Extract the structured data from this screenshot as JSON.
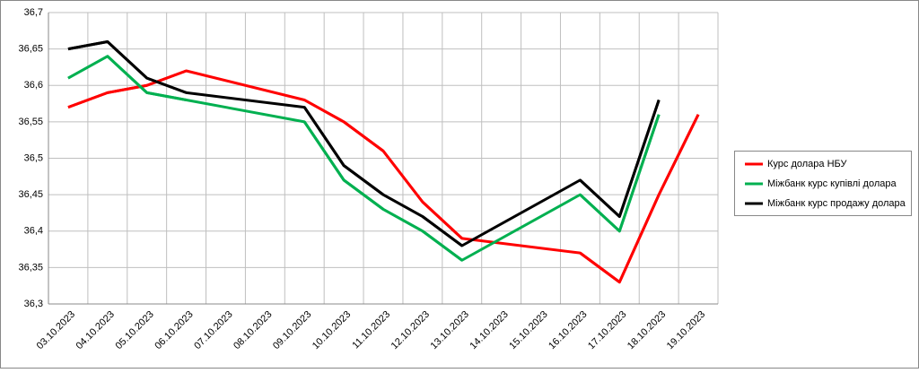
{
  "chart_data": {
    "type": "line",
    "categories": [
      "03.10.2023",
      "04.10.2023",
      "05.10.2023",
      "06.10.2023",
      "07.10.2023",
      "08.10.2023",
      "09.10.2023",
      "10.10.2023",
      "11.10.2023",
      "12.10.2023",
      "13.10.2023",
      "14.10.2023",
      "15.10.2023",
      "16.10.2023",
      "17.10.2023",
      "18.10.2023",
      "19.10.2023"
    ],
    "series": [
      {
        "name": "Курс долара НБУ",
        "color": "#ff0000",
        "values": [
          36.57,
          36.59,
          36.6,
          36.62,
          null,
          null,
          36.58,
          36.55,
          36.51,
          36.44,
          36.39,
          null,
          null,
          36.37,
          36.33,
          36.45,
          36.56
        ]
      },
      {
        "name": "Міжбанк курс купівлі долара",
        "color": "#00b050",
        "values": [
          36.61,
          36.64,
          36.59,
          36.58,
          null,
          null,
          36.55,
          36.47,
          36.43,
          36.4,
          36.36,
          null,
          null,
          36.45,
          36.4,
          36.56,
          null
        ]
      },
      {
        "name": "Міжбанк курс продажу долара",
        "color": "#000000",
        "values": [
          36.65,
          36.66,
          36.61,
          36.59,
          null,
          null,
          36.57,
          36.49,
          36.45,
          36.42,
          36.38,
          null,
          null,
          36.47,
          36.42,
          36.58,
          null
        ]
      }
    ],
    "ylim": [
      36.3,
      36.7
    ],
    "yticks": [
      {
        "value": 36.3,
        "label": "36,3"
      },
      {
        "value": 36.35,
        "label": "36,35"
      },
      {
        "value": 36.4,
        "label": "36,4"
      },
      {
        "value": 36.45,
        "label": "36,45"
      },
      {
        "value": 36.5,
        "label": "36,5"
      },
      {
        "value": 36.55,
        "label": "36,55"
      },
      {
        "value": 36.6,
        "label": "36,6"
      },
      {
        "value": 36.65,
        "label": "36,65"
      },
      {
        "value": 36.7,
        "label": "36,7"
      }
    ],
    "grid": true,
    "span_gaps": true,
    "legend": "right"
  }
}
